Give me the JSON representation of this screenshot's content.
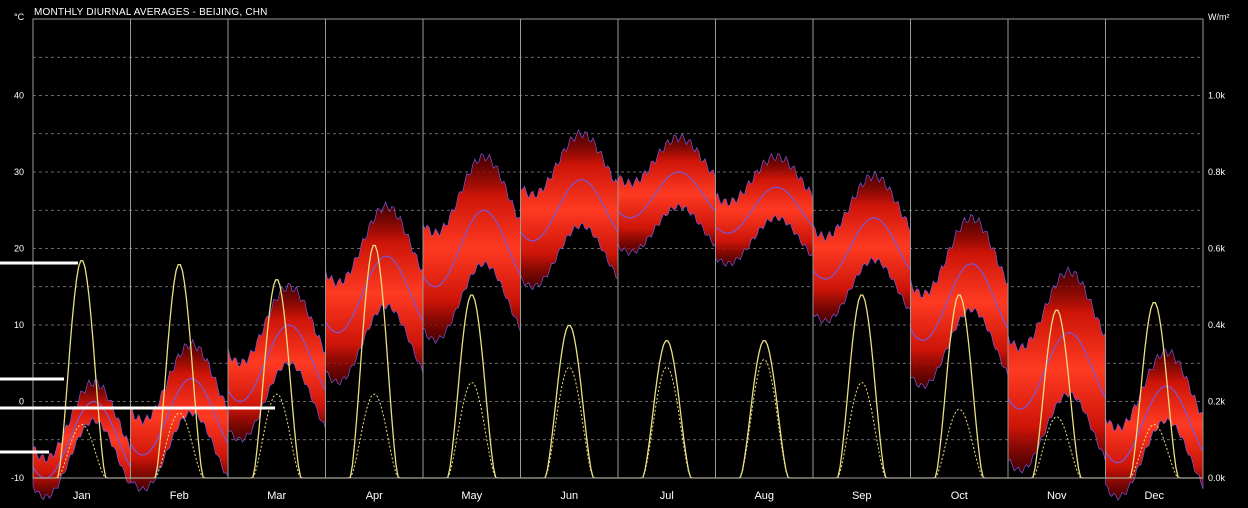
{
  "chart_data": {
    "type": "area",
    "title": "MONTHLY DIURNAL AVERAGES - BEIJING, CHN",
    "left_axis": {
      "unit": "°C",
      "min": -10,
      "max": 50,
      "ticks": [
        -10,
        0,
        10,
        20,
        30,
        40
      ]
    },
    "right_axis": {
      "unit": "W/m²",
      "min": 0,
      "max": 1200,
      "ticks": [
        0,
        200,
        400,
        600,
        800,
        1000
      ],
      "tick_labels": [
        "0.0k",
        "0.2k",
        "0.4k",
        "0.6k",
        "0.8k",
        "1.0k"
      ]
    },
    "categories": [
      "Jan",
      "Feb",
      "Mar",
      "Apr",
      "May",
      "Jun",
      "Jul",
      "Aug",
      "Sep",
      "Oct",
      "Nov",
      "Dec"
    ],
    "series": [
      {
        "kind": "temperature",
        "unit": "°C",
        "mean": [
          -5,
          -2,
          5,
          14,
          20,
          25,
          27,
          25,
          20,
          13,
          4,
          -3
        ],
        "amplitude": [
          5,
          5,
          5,
          5,
          5,
          4,
          3,
          3,
          4,
          5,
          5,
          5
        ],
        "band_min": [
          -10,
          -10,
          -4,
          4,
          10,
          17,
          20,
          19,
          12,
          3,
          -6,
          -9
        ],
        "band_max": [
          5,
          9,
          16,
          27,
          34,
          37,
          35,
          33,
          31,
          25,
          20,
          10
        ]
      },
      {
        "kind": "solar-peak",
        "unit": "W/m²",
        "values": [
          570,
          560,
          520,
          610,
          480,
          400,
          360,
          360,
          480,
          480,
          440,
          460
        ]
      },
      {
        "kind": "solar-secondary",
        "unit": "W/m²",
        "values": [
          140,
          170,
          220,
          220,
          250,
          290,
          290,
          310,
          250,
          180,
          160,
          140
        ]
      }
    ],
    "grid": true
  },
  "colors": {
    "background": "#000000",
    "band": "#e01a0c",
    "mean_line": "#7a56d8",
    "solar_line": "#e8e082",
    "grid": "#8a8a8a",
    "frame": "#9a9a9a",
    "text": "#ffffff"
  }
}
